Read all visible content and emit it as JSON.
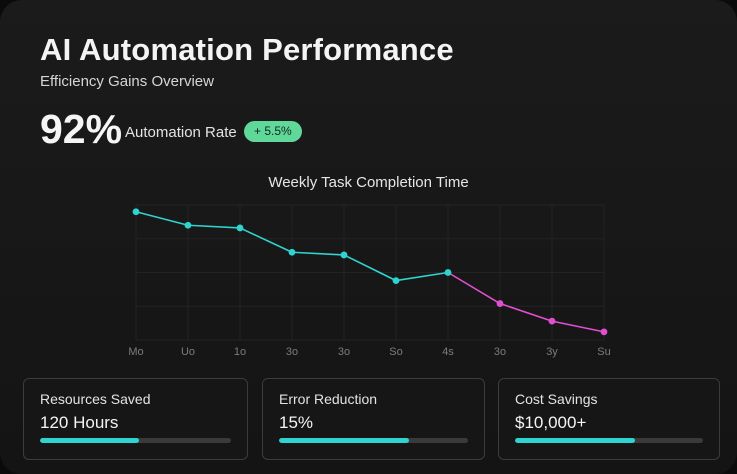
{
  "header": {
    "title": "AI Automation Performance",
    "subtitle": "Efficiency Gains Overview"
  },
  "kpi": {
    "value": "92%",
    "label": "Automation Rate",
    "change": "+ 5.5%"
  },
  "colors": {
    "line_primary": "#2fd3cf",
    "line_highlight": "#e04fd0",
    "badge": "#5fd89a",
    "progress": "#2fd3cf"
  },
  "chart_data": {
    "type": "line",
    "title": "Weekly Task Completion Time",
    "xlabel": "",
    "ylabel": "",
    "categories": [
      "Mo",
      "Uo",
      "1o",
      "3o",
      "3o",
      "So",
      "4s",
      "3o",
      "3y",
      "Su"
    ],
    "series": [
      {
        "values": [
          9.5,
          8.5,
          8.3,
          6.5,
          6.3,
          4.4,
          5.0,
          2.7,
          1.4,
          0.6
        ],
        "highlight_from_index": 7
      }
    ],
    "ylim": [
      0,
      10
    ],
    "grid": true,
    "legend": "none"
  },
  "cards": [
    {
      "label": "Resources Saved",
      "value": "120 Hours",
      "progress": 0.52
    },
    {
      "label": "Error Reduction",
      "value": "15%",
      "progress": 0.69
    },
    {
      "label": "Cost Savings",
      "value": "$10,000+",
      "progress": 0.64
    }
  ]
}
